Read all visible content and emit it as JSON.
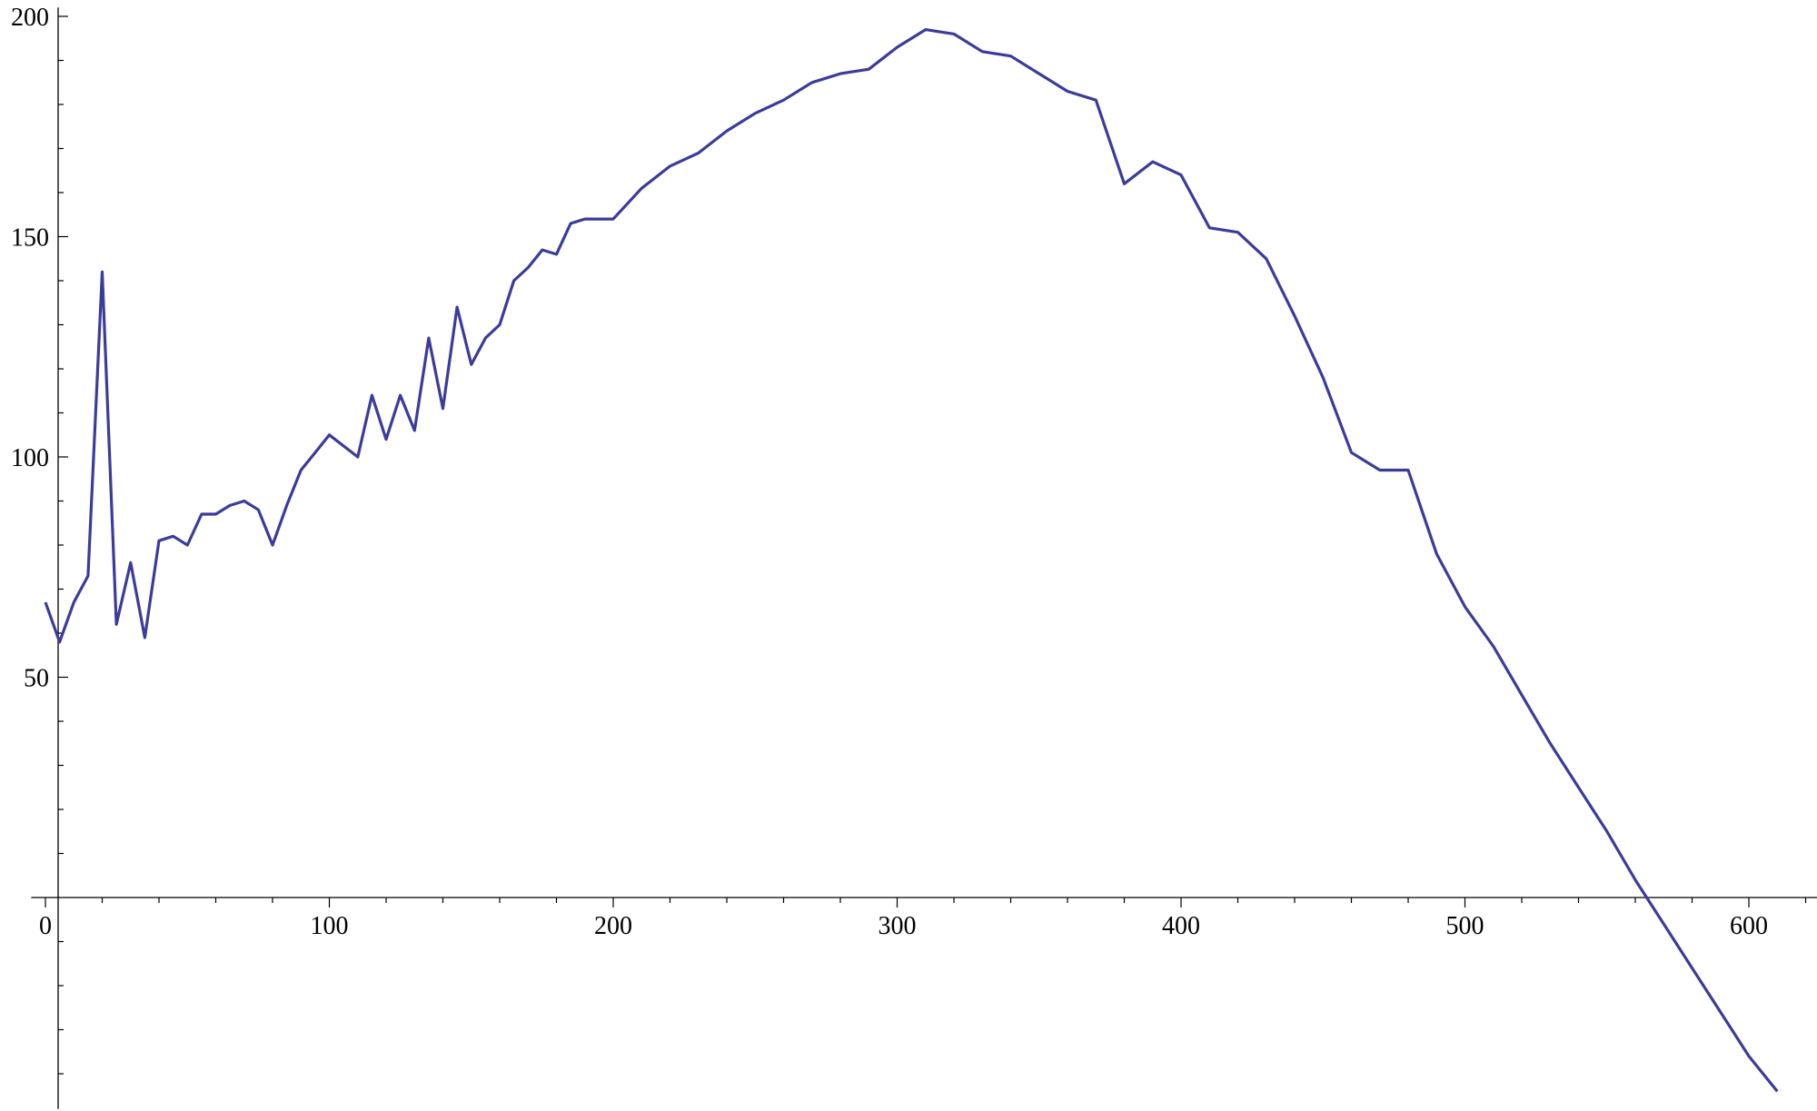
{
  "chart_data": {
    "type": "line",
    "title": "",
    "xlabel": "",
    "ylabel": "",
    "xlim": [
      -5,
      625
    ],
    "ylim": [
      -48,
      202
    ],
    "grid": false,
    "legend": "none",
    "x_ticks": [
      0,
      100,
      200,
      300,
      400,
      500,
      600
    ],
    "y_ticks": [
      50,
      100,
      150,
      200
    ],
    "x_tick_labels": [
      "0",
      "100",
      "200",
      "300",
      "400",
      "500",
      "600"
    ],
    "y_tick_labels": [
      "50",
      "100",
      "150",
      "200"
    ],
    "colors": {
      "series": "#3b3b9c",
      "axis": "#000000"
    },
    "series": [
      {
        "x": [
          0,
          5,
          10,
          15,
          20,
          25,
          30,
          35,
          40,
          45,
          50,
          55,
          60,
          65,
          70,
          75,
          80,
          85,
          90,
          95,
          100,
          110,
          115,
          120,
          125,
          130,
          135,
          140,
          145,
          150,
          155,
          160,
          165,
          170,
          175,
          180,
          185,
          190,
          195,
          200,
          210,
          220,
          230,
          240,
          250,
          260,
          270,
          280,
          290,
          300,
          310,
          320,
          330,
          340,
          350,
          360,
          370,
          380,
          390,
          400,
          410,
          420,
          430,
          440,
          450,
          460,
          470,
          480,
          490,
          500,
          510,
          520,
          530,
          540,
          550,
          560,
          570,
          580,
          590,
          600,
          610
        ],
        "y": [
          67,
          58,
          67,
          73,
          142,
          62,
          76,
          59,
          81,
          82,
          80,
          87,
          87,
          89,
          90,
          88,
          80,
          89,
          97,
          101,
          105,
          100,
          114,
          104,
          114,
          106,
          127,
          111,
          134,
          121,
          127,
          130,
          140,
          143,
          147,
          146,
          153,
          154,
          154,
          154,
          161,
          166,
          169,
          174,
          178,
          181,
          185,
          187,
          188,
          193,
          197,
          196,
          192,
          191,
          187,
          183,
          181,
          162,
          167,
          164,
          152,
          151,
          145,
          132,
          118,
          101,
          97,
          97,
          78,
          66,
          57,
          46,
          35,
          25,
          15,
          4,
          -6,
          -16,
          -26,
          -36,
          -44
        ]
      }
    ]
  }
}
